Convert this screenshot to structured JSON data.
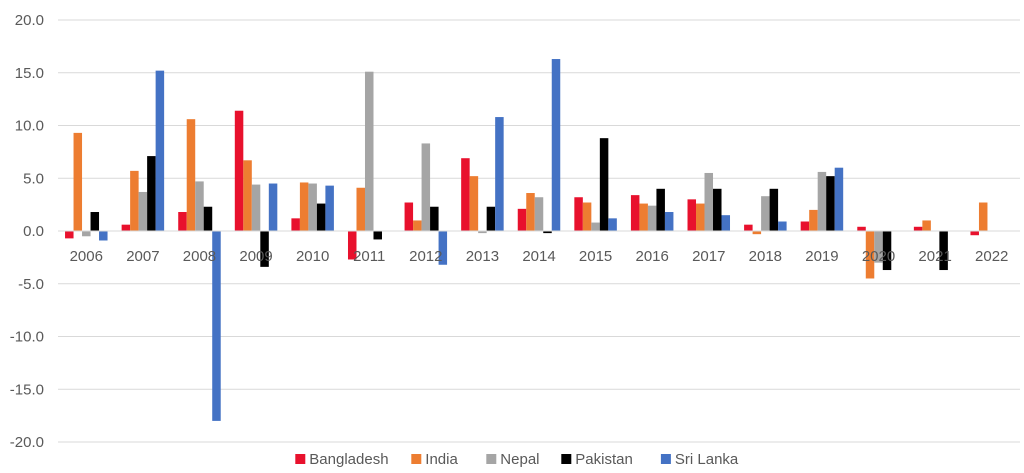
{
  "chart_data": {
    "type": "bar",
    "title": "",
    "xlabel": "",
    "ylabel": "",
    "ylim": [
      -20,
      20
    ],
    "yticks": [
      -20,
      -15,
      -10,
      -5,
      0,
      5,
      10,
      15,
      20
    ],
    "ytick_labels": [
      "-20.0",
      "-15.0",
      "-10.0",
      "-5.0",
      "0.0",
      "5.0",
      "10.0",
      "15.0",
      "20.0"
    ],
    "grid": true,
    "legend_position": "bottom",
    "categories": [
      "2006",
      "2007",
      "2008",
      "2009",
      "2010",
      "2011",
      "2012",
      "2013",
      "2014",
      "2015",
      "2016",
      "2017",
      "2018",
      "2019",
      "2020",
      "2021",
      "2022"
    ],
    "series": [
      {
        "name": "Bangladesh",
        "color": "#e8112d",
        "values": [
          -0.7,
          0.6,
          1.8,
          11.4,
          1.2,
          -2.7,
          2.7,
          6.9,
          2.1,
          3.2,
          3.4,
          3.0,
          0.6,
          0.9,
          0.4,
          0.4,
          -0.4
        ]
      },
      {
        "name": "India",
        "color": "#ed7d31",
        "values": [
          9.3,
          5.7,
          10.6,
          6.7,
          4.6,
          4.1,
          1.0,
          5.2,
          3.6,
          2.7,
          2.6,
          2.6,
          -0.3,
          2.0,
          -4.5,
          1.0,
          2.7
        ]
      },
      {
        "name": "Nepal",
        "color": "#a5a5a5",
        "values": [
          -0.5,
          3.7,
          4.7,
          4.4,
          4.5,
          15.1,
          8.3,
          -0.2,
          3.2,
          0.8,
          2.4,
          5.5,
          3.3,
          5.6,
          -3.0,
          null,
          null
        ]
      },
      {
        "name": "Pakistan",
        "color": "#000000",
        "values": [
          1.8,
          7.1,
          2.3,
          -3.4,
          2.6,
          -0.8,
          2.3,
          2.3,
          -0.2,
          8.8,
          4.0,
          4.0,
          4.0,
          5.2,
          -3.7,
          -3.7,
          null
        ]
      },
      {
        "name": "Sri Lanka",
        "color": "#4472c4",
        "values": [
          -0.9,
          15.2,
          -18.0,
          4.5,
          4.3,
          null,
          -3.2,
          10.8,
          16.3,
          1.2,
          1.8,
          1.5,
          0.9,
          6.0,
          null,
          null,
          null
        ]
      }
    ]
  }
}
